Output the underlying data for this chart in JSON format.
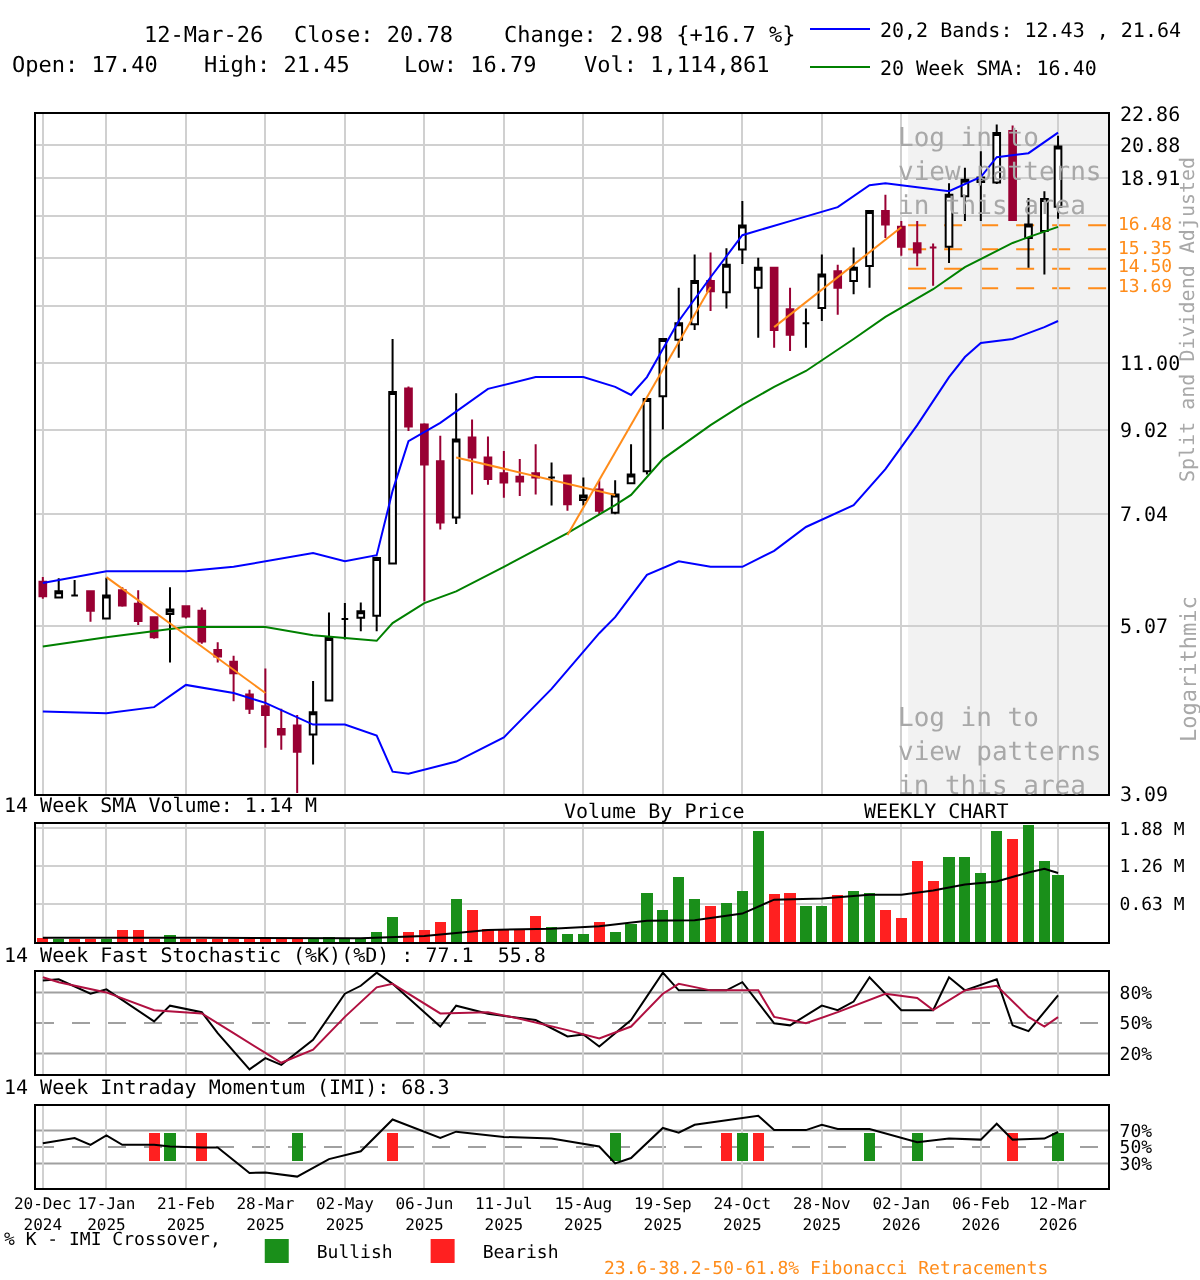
{
  "chart_data": [
    {
      "type": "candlestick",
      "x": [
        "2024-12-20",
        "2024-12-27",
        "2025-01-03",
        "2025-01-10",
        "2025-01-17",
        "2025-01-24",
        "2025-01-31",
        "2025-02-07",
        "2025-02-14",
        "2025-02-21",
        "2025-02-28",
        "2025-03-07",
        "2025-03-14",
        "2025-03-21",
        "2025-03-28",
        "2025-04-04",
        "2025-04-11",
        "2025-04-18",
        "2025-04-25",
        "2025-05-02",
        "2025-05-09",
        "2025-05-16",
        "2025-05-23",
        "2025-05-30",
        "2025-06-06",
        "2025-06-13",
        "2025-06-20",
        "2025-06-27",
        "2025-07-04",
        "2025-07-11",
        "2025-07-18",
        "2025-07-25",
        "2025-08-01",
        "2025-08-08",
        "2025-08-15",
        "2025-08-22",
        "2025-08-29",
        "2025-09-05",
        "2025-09-12",
        "2025-09-19",
        "2025-09-26",
        "2025-10-03",
        "2025-10-10",
        "2025-10-17",
        "2025-10-24",
        "2025-10-31",
        "2025-11-07",
        "2025-11-14",
        "2025-11-21",
        "2025-11-28",
        "2025-12-05",
        "2025-12-12",
        "2025-12-19",
        "2025-12-26",
        "2026-01-02",
        "2026-01-09",
        "2026-01-16",
        "2026-01-23",
        "2026-01-30",
        "2026-02-06",
        "2026-02-13",
        "2026-02-20",
        "2026-02-27",
        "2026-03-06",
        "2026-03-12"
      ],
      "ohlc": [
        [
          5.77,
          5.85,
          5.49,
          5.53
        ],
        [
          5.51,
          5.83,
          5.51,
          5.61
        ],
        [
          5.54,
          5.8,
          5.53,
          5.54
        ],
        [
          5.61,
          5.61,
          5.13,
          5.3
        ],
        [
          5.18,
          5.84,
          5.18,
          5.54
        ],
        [
          5.63,
          5.68,
          5.36,
          5.38
        ],
        [
          5.41,
          5.63,
          5.08,
          5.14
        ],
        [
          5.2,
          5.2,
          4.88,
          4.9
        ],
        [
          5.25,
          5.68,
          4.55,
          5.32
        ],
        [
          5.37,
          5.37,
          5.18,
          5.21
        ],
        [
          5.3,
          5.35,
          4.81,
          4.84
        ],
        [
          4.72,
          4.83,
          4.55,
          4.63
        ],
        [
          4.56,
          4.64,
          4.06,
          4.41
        ],
        [
          4.14,
          4.2,
          3.91,
          3.97
        ],
        [
          4.0,
          4.47,
          3.54,
          3.9
        ],
        [
          3.74,
          3.97,
          3.52,
          3.68
        ],
        [
          3.78,
          3.9,
          3.1,
          3.5
        ],
        [
          3.68,
          4.31,
          3.37,
          3.93
        ],
        [
          4.07,
          5.27,
          4.07,
          4.89
        ],
        [
          5.17,
          5.42,
          4.87,
          5.17
        ],
        [
          5.19,
          5.43,
          4.99,
          5.29
        ],
        [
          5.22,
          6.21,
          4.99,
          6.19
        ],
        [
          6.09,
          11.79,
          6.09,
          10.09
        ],
        [
          10.19,
          10.25,
          8.99,
          9.11
        ],
        [
          9.17,
          9.2,
          5.45,
          8.15
        ],
        [
          8.23,
          8.87,
          6.73,
          6.87
        ],
        [
          6.97,
          10.05,
          6.84,
          8.77
        ],
        [
          8.82,
          9.3,
          7.46,
          8.32
        ],
        [
          8.32,
          8.85,
          7.68,
          7.81
        ],
        [
          7.94,
          8.48,
          7.39,
          7.73
        ],
        [
          7.86,
          8.28,
          7.43,
          7.75
        ],
        [
          7.94,
          8.65,
          7.46,
          7.84
        ],
        [
          7.84,
          8.2,
          7.22,
          7.84
        ],
        [
          7.89,
          7.9,
          7.11,
          7.25
        ],
        [
          7.34,
          7.84,
          7.22,
          7.44
        ],
        [
          7.57,
          7.78,
          7.04,
          7.11
        ],
        [
          7.07,
          7.78,
          7.04,
          7.46
        ],
        [
          7.71,
          8.65,
          7.71,
          7.91
        ],
        [
          7.99,
          9.88,
          7.91,
          9.88
        ],
        [
          9.96,
          11.79,
          9.03,
          11.79
        ],
        [
          11.76,
          13.71,
          11.16,
          12.35
        ],
        [
          12.31,
          15.12,
          12.11,
          13.98
        ],
        [
          13.98,
          15.21,
          12.8,
          13.57
        ],
        [
          13.53,
          15.4,
          12.9,
          14.67
        ],
        [
          15.34,
          17.69,
          14.7,
          16.46
        ],
        [
          13.71,
          14.97,
          11.83,
          14.54
        ],
        [
          14.54,
          14.54,
          11.49,
          12.11
        ],
        [
          12.87,
          13.71,
          11.38,
          11.94
        ],
        [
          12.35,
          12.9,
          11.49,
          12.35
        ],
        [
          12.92,
          15.12,
          12.43,
          14.25
        ],
        [
          14.39,
          14.67,
          12.66,
          13.71
        ],
        [
          13.98,
          15.43,
          13.45,
          14.54
        ],
        [
          14.62,
          17.18,
          13.71,
          17.18
        ],
        [
          17.18,
          18.03,
          15.87,
          16.51
        ],
        [
          16.41,
          16.68,
          15.06,
          15.47
        ],
        [
          15.63,
          16.68,
          14.6,
          15.21
        ],
        [
          15.43,
          15.61,
          13.79,
          15.43
        ],
        [
          15.47,
          18.65,
          14.75,
          18.03
        ],
        [
          17.94,
          19.52,
          16.68,
          18.84
        ],
        [
          18.71,
          20.49,
          16.68,
          18.96
        ],
        [
          18.69,
          22.16,
          18.6,
          21.61
        ],
        [
          21.74,
          22.1,
          16.68,
          16.74
        ],
        [
          15.87,
          17.86,
          14.54,
          16.51
        ],
        [
          16.2,
          18.21,
          14.25,
          17.8
        ],
        [
          17.4,
          21.45,
          16.79,
          20.78
        ]
      ],
      "colors": [
        "#990033",
        "#000000",
        "#000000",
        "#990033",
        "#000000",
        "#990033",
        "#990033",
        "#990033",
        "#000000",
        "#990033",
        "#990033",
        "#990033",
        "#990033",
        "#990033",
        "#990033",
        "#990033",
        "#990033",
        "#000000",
        "#000000",
        "#000000",
        "#000000",
        "#000000",
        "#000000",
        "#990033",
        "#990033",
        "#990033",
        "#000000",
        "#990033",
        "#990033",
        "#990033",
        "#990033",
        "#990033",
        "#000000",
        "#990033",
        "#000000",
        "#990033",
        "#000000",
        "#000000",
        "#000000",
        "#000000",
        "#000000",
        "#000000",
        "#990033",
        "#000000",
        "#000000",
        "#000000",
        "#990033",
        "#990033",
        "#000000",
        "#000000",
        "#990033",
        "#000000",
        "#000000",
        "#990033",
        "#990033",
        "#990033",
        "#990033",
        "#000000",
        "#000000",
        "#000000",
        "#000000",
        "#990033",
        "#000000",
        "#000000",
        "#000000"
      ],
      "xlim": [
        "2024-12-17",
        "2026-04-03"
      ],
      "xticks": [
        "2024-12-20",
        "2025-01-17",
        "2025-02-21",
        "2025-03-28",
        "2025-05-02",
        "2025-06-06",
        "2025-07-11",
        "2025-08-15",
        "2025-09-19",
        "2025-10-24",
        "2025-11-28",
        "2026-01-02",
        "2026-02-06",
        "2026-03-12"
      ],
      "tick_labels": "y",
      "log": true,
      "grid": true,
      "ylim": [
        3.09,
        22.86
      ],
      "yticks": [
        22.86,
        20.88,
        18.91,
        {
          "value": 16.94,
          "label": null
        },
        {
          "value": 14.96,
          "label": null
        },
        {
          "value": 12.98,
          "label": null
        },
        {
          "value": 11,
          "label": "11.00"
        },
        9.02,
        7.04,
        5.07,
        3.09
      ],
      "ylabel": "Split and Dividend Adjusted",
      "legend": "top right",
      "series": [
        {
          "type": "line",
          "name": "20,2 Bands: 12.43 , 21.64",
          "color": "#0000ff",
          "x": [
            "2024-12-20",
            "2025-01-17",
            "2025-02-21",
            "2025-03-14",
            "2025-04-18",
            "2025-05-02",
            "2025-05-16",
            "2025-05-23",
            "2025-05-30",
            "2025-06-13",
            "2025-07-04",
            "2025-07-25",
            "2025-08-15",
            "2025-08-29",
            "2025-09-05",
            "2025-09-12",
            "2025-09-26",
            "2025-10-10",
            "2025-10-24",
            "2025-11-14",
            "2025-12-05",
            "2025-12-19",
            "2025-12-26",
            "2026-01-09",
            "2026-01-23",
            "2026-02-06",
            "2026-02-13",
            "2026-02-27",
            "2026-03-12"
          ],
          "values": [
            5.75,
            5.95,
            5.95,
            6.03,
            6.28,
            6.13,
            6.24,
            7.54,
            8.73,
            9.21,
            10.18,
            10.54,
            10.54,
            10.24,
            10.0,
            10.54,
            12.43,
            14.14,
            16.0,
            16.68,
            17.38,
            18.54,
            18.65,
            18.43,
            18.21,
            18.99,
            20.13,
            20.37,
            21.64
          ]
        },
        {
          "type": "line",
          "color": "#0000ff",
          "x": [
            "2024-12-20",
            "2025-01-17",
            "2025-02-07",
            "2025-02-21",
            "2025-03-14",
            "2025-03-28",
            "2025-04-18",
            "2025-05-02",
            "2025-05-16",
            "2025-05-23",
            "2025-05-30",
            "2025-06-20",
            "2025-07-11",
            "2025-08-01",
            "2025-08-22",
            "2025-08-29",
            "2025-09-12",
            "2025-09-26",
            "2025-10-10",
            "2025-10-24",
            "2025-11-07",
            "2025-11-21",
            "2025-12-12",
            "2025-12-26",
            "2026-01-09",
            "2026-01-23",
            "2026-01-30",
            "2026-02-06",
            "2026-02-20",
            "2026-03-06",
            "2026-03-12"
          ],
          "values": [
            3.94,
            3.92,
            3.99,
            4.26,
            4.16,
            4.04,
            3.79,
            3.79,
            3.67,
            3.3,
            3.28,
            3.4,
            3.65,
            4.21,
            4.96,
            5.2,
            5.89,
            6.13,
            6.03,
            6.03,
            6.32,
            6.78,
            7.23,
            8.04,
            9.15,
            10.54,
            11.18,
            11.65,
            11.79,
            12.21,
            12.43
          ]
        },
        {
          "type": "line",
          "name": "20 Week SMA: 16.40",
          "color": "#008000",
          "x": [
            "2024-12-20",
            "2025-01-17",
            "2025-02-21",
            "2025-03-28",
            "2025-04-18",
            "2025-05-16",
            "2025-05-23",
            "2025-06-06",
            "2025-06-20",
            "2025-07-11",
            "2025-08-08",
            "2025-08-29",
            "2025-09-05",
            "2025-09-19",
            "2025-10-10",
            "2025-10-24",
            "2025-11-07",
            "2025-11-21",
            "2025-12-12",
            "2025-12-26",
            "2026-01-16",
            "2026-01-30",
            "2026-02-20",
            "2026-02-27",
            "2026-03-12"
          ],
          "values": [
            4.77,
            4.9,
            5.05,
            5.05,
            4.93,
            4.85,
            5.11,
            5.42,
            5.61,
            6.03,
            6.66,
            7.23,
            7.45,
            8.28,
            9.15,
            9.71,
            10.24,
            10.73,
            11.79,
            12.58,
            13.65,
            14.57,
            15.64,
            15.91,
            16.4
          ]
        },
        {
          "type": "line",
          "color": "#ff8c1a",
          "x": [
            "2025-01-17",
            "2025-03-28"
          ],
          "values": [
            5.85,
            4.16
          ]
        },
        {
          "type": "line",
          "color": "#ff8c1a",
          "x": [
            "2025-06-20",
            "2025-08-29"
          ],
          "values": [
            8.32,
            7.45
          ]
        },
        {
          "type": "line",
          "color": "#ff8c1a",
          "x": [
            "2025-08-08",
            "2025-10-10"
          ],
          "values": [
            6.62,
            13.74
          ]
        },
        {
          "type": "line",
          "color": "#ff8c1a",
          "x": [
            "2025-11-07",
            "2026-01-02"
          ],
          "values": [
            12.21,
            16.38
          ]
        }
      ],
      "ref_lines": [
        {
          "axis": "y",
          "value": 16.48,
          "label": "16.48",
          "color": "#ff8c1a",
          "line_style": "dashed"
        },
        {
          "axis": "y",
          "value": 15.35,
          "label": "15.35",
          "color": "#ff8c1a",
          "line_style": "dashed"
        },
        {
          "axis": "y",
          "value": 14.5,
          "label": "14.50",
          "color": "#ff8c1a",
          "line_style": "dashed"
        },
        {
          "axis": "y",
          "value": 13.69,
          "label": "13.69",
          "color": "#ff8c1a",
          "line_style": "dashed"
        }
      ],
      "bands": [
        {
          "axis": "x",
          "from": "2026-01-05",
          "to": "2026-04-03",
          "color": "#f2f2f2"
        }
      ],
      "annotations": [
        "12-Mar-26",
        "Close: 20.78",
        "Change: 2.98 {+16.7 %}",
        "Open: 17.40",
        "High: 21.45",
        "Low: 16.79",
        "Vol: 1,114,861",
        "Log in to view patterns in this area",
        "Log in to view patterns in this area",
        "Logarithmic"
      ]
    },
    {
      "type": "bar",
      "title": "14 Week SMA Volume: 1.14 M",
      "x": [
        "2024-12-20",
        "2024-12-27",
        "2025-01-03",
        "2025-01-10",
        "2025-01-17",
        "2025-01-24",
        "2025-01-31",
        "2025-02-07",
        "2025-02-14",
        "2025-02-21",
        "2025-02-28",
        "2025-03-07",
        "2025-03-14",
        "2025-03-21",
        "2025-03-28",
        "2025-04-04",
        "2025-04-11",
        "2025-04-18",
        "2025-04-25",
        "2025-05-02",
        "2025-05-09",
        "2025-05-16",
        "2025-05-23",
        "2025-05-30",
        "2025-06-06",
        "2025-06-13",
        "2025-06-20",
        "2025-06-27",
        "2025-07-04",
        "2025-07-11",
        "2025-07-18",
        "2025-07-25",
        "2025-08-01",
        "2025-08-08",
        "2025-08-15",
        "2025-08-22",
        "2025-08-29",
        "2025-09-05",
        "2025-09-12",
        "2025-09-19",
        "2025-09-26",
        "2025-10-03",
        "2025-10-10",
        "2025-10-17",
        "2025-10-24",
        "2025-10-31",
        "2025-11-07",
        "2025-11-14",
        "2025-11-21",
        "2025-11-28",
        "2025-12-05",
        "2025-12-12",
        "2025-12-19",
        "2025-12-26",
        "2026-01-02",
        "2026-01-09",
        "2026-01-16",
        "2026-01-23",
        "2026-01-30",
        "2026-02-06",
        "2026-02-13",
        "2026-02-20",
        "2026-02-27",
        "2026-03-06",
        "2026-03-12"
      ],
      "xlim": [
        "2024-12-17",
        "2026-04-03"
      ],
      "xticks": [
        "2024-12-20",
        "2025-01-17",
        "2025-02-21",
        "2025-03-28",
        "2025-05-02",
        "2025-06-06",
        "2025-07-11",
        "2025-08-15",
        "2025-09-19",
        "2025-10-24",
        "2025-11-28",
        "2026-01-02",
        "2026-02-06",
        "2026-03-12"
      ],
      "tick_labels": "y",
      "grid": true,
      "ylim": [
        0,
        1.95
      ],
      "yticks": [
        {
          "value": 0.63,
          "label": "0.63 M"
        },
        {
          "value": 1.26,
          "label": "1.26 M"
        },
        {
          "value": 1.88,
          "label": "1.88 M"
        }
      ],
      "series": [
        {
          "type": "bar",
          "values": [
            0.07,
            0.05,
            0.05,
            0.05,
            0.05,
            0.2,
            0.2,
            0.05,
            0.12,
            0.05,
            0.05,
            0.05,
            0.05,
            0.05,
            0.09,
            0.05,
            0.05,
            0.05,
            0.08,
            0.05,
            0.05,
            0.16,
            0.42,
            0.16,
            0.2,
            0.33,
            0.71,
            0.53,
            0.21,
            0.21,
            0.21,
            0.43,
            0.24,
            0.13,
            0.14,
            0.33,
            0.16,
            0.29,
            0.81,
            0.53,
            1.08,
            0.71,
            0.59,
            0.64,
            0.84,
            1.83,
            0.79,
            0.81,
            0.59,
            0.59,
            0.78,
            0.84,
            0.81,
            0.53,
            0.4,
            1.34,
            1.01,
            1.4,
            1.4,
            1.14,
            1.83,
            1.7,
            1.93,
            1.34,
            1.11
          ],
          "colors": [
            "#ff2020",
            "#1a8f1a",
            "#ff2020",
            "#ff2020",
            "#1a8f1a",
            "#ff2020",
            "#ff2020",
            "#ff2020",
            "#1a8f1a",
            "#ff2020",
            "#ff2020",
            "#ff2020",
            "#ff2020",
            "#ff2020",
            "#ff2020",
            "#ff2020",
            "#ff2020",
            "#1a8f1a",
            "#1a8f1a",
            "#1a8f1a",
            "#1a8f1a",
            "#1a8f1a",
            "#1a8f1a",
            "#ff2020",
            "#ff2020",
            "#ff2020",
            "#1a8f1a",
            "#ff2020",
            "#ff2020",
            "#ff2020",
            "#ff2020",
            "#ff2020",
            "#1a8f1a",
            "#1a8f1a",
            "#1a8f1a",
            "#ff2020",
            "#1a8f1a",
            "#1a8f1a",
            "#1a8f1a",
            "#1a8f1a",
            "#1a8f1a",
            "#1a8f1a",
            "#ff2020",
            "#1a8f1a",
            "#1a8f1a",
            "#1a8f1a",
            "#ff2020",
            "#ff2020",
            "#1a8f1a",
            "#1a8f1a",
            "#ff2020",
            "#1a8f1a",
            "#1a8f1a",
            "#ff2020",
            "#ff2020",
            "#ff2020",
            "#ff2020",
            "#1a8f1a",
            "#1a8f1a",
            "#1a8f1a",
            "#1a8f1a",
            "#ff2020",
            "#1a8f1a",
            "#1a8f1a",
            "#1a8f1a"
          ]
        },
        {
          "type": "line",
          "color": "#000000",
          "x": [
            "2024-12-20",
            "2025-02-28",
            "2025-05-09",
            "2025-06-06",
            "2025-07-04",
            "2025-08-01",
            "2025-08-22",
            "2025-09-12",
            "2025-10-03",
            "2025-10-24",
            "2025-11-07",
            "2025-11-28",
            "2025-12-19",
            "2026-01-02",
            "2026-01-16",
            "2026-01-30",
            "2026-02-13",
            "2026-02-27",
            "2026-03-06",
            "2026-03-12"
          ],
          "values": [
            0.07,
            0.07,
            0.06,
            0.1,
            0.2,
            0.22,
            0.26,
            0.35,
            0.36,
            0.47,
            0.7,
            0.72,
            0.78,
            0.78,
            0.85,
            0.95,
            1.0,
            1.15,
            1.21,
            1.14
          ]
        }
      ],
      "annotations": [
        "Volume By Price",
        "WEEKLY CHART"
      ]
    },
    {
      "type": "line",
      "title": "14 Week Fast Stochastic (%K)(%D) : 77.1  55.8",
      "xlim": [
        "2024-12-17",
        "2026-04-03"
      ],
      "xticks": [
        "2024-12-20",
        "2025-01-17",
        "2025-02-21",
        "2025-03-28",
        "2025-05-02",
        "2025-06-06",
        "2025-07-11",
        "2025-08-15",
        "2025-09-19",
        "2025-10-24",
        "2025-11-28",
        "2026-01-02",
        "2026-02-06",
        "2026-03-12"
      ],
      "tick_labels": "y",
      "grid": "x",
      "ylim": [
        0,
        100
      ],
      "yticks": [
        {
          "value": 20,
          "label": "20%"
        },
        {
          "value": 50,
          "label": "50%"
        },
        {
          "value": 80,
          "label": "80%"
        }
      ],
      "series": [
        {
          "color": "#000000",
          "x": [
            "2024-12-20",
            "2024-12-27",
            "2025-01-10",
            "2025-01-17",
            "2025-02-07",
            "2025-02-14",
            "2025-02-28",
            "2025-03-07",
            "2025-03-21",
            "2025-03-28",
            "2025-04-04",
            "2025-04-18",
            "2025-05-02",
            "2025-05-09",
            "2025-05-16",
            "2025-05-23",
            "2025-06-13",
            "2025-06-20",
            "2025-07-04",
            "2025-07-25",
            "2025-08-08",
            "2025-08-15",
            "2025-08-22",
            "2025-08-29",
            "2025-09-05",
            "2025-09-19",
            "2025-09-26",
            "2025-10-17",
            "2025-10-24",
            "2025-11-07",
            "2025-11-14",
            "2025-11-28",
            "2025-12-05",
            "2025-12-12",
            "2025-12-19",
            "2026-01-02",
            "2026-01-16",
            "2026-01-23",
            "2026-01-30",
            "2026-02-13",
            "2026-02-20",
            "2026-02-27",
            "2026-03-12"
          ],
          "values": [
            91.6,
            92.9,
            78.7,
            83,
            51.6,
            67,
            60.6,
            40,
            4.5,
            15.5,
            9,
            33.6,
            78.7,
            86.5,
            99.4,
            88.4,
            46.5,
            67,
            59,
            52.9,
            36.8,
            38.7,
            27,
            40,
            52.9,
            99.4,
            82,
            82,
            90,
            49.7,
            47.7,
            67,
            62.6,
            71,
            94.8,
            62.6,
            62.6,
            94.8,
            82,
            92.9,
            47.7,
            42,
            77.1
          ]
        },
        {
          "color": "#b01040",
          "x": [
            "2024-12-20",
            "2024-12-27",
            "2025-01-17",
            "2025-02-07",
            "2025-02-28",
            "2025-03-14",
            "2025-03-28",
            "2025-04-04",
            "2025-04-18",
            "2025-05-02",
            "2025-05-16",
            "2025-05-23",
            "2025-06-13",
            "2025-07-04",
            "2025-07-18",
            "2025-08-08",
            "2025-08-22",
            "2025-09-05",
            "2025-09-19",
            "2025-09-26",
            "2025-10-10",
            "2025-10-31",
            "2025-11-07",
            "2025-11-21",
            "2025-12-05",
            "2025-12-26",
            "2026-01-09",
            "2026-01-16",
            "2026-01-30",
            "2026-02-13",
            "2026-02-27",
            "2026-03-06",
            "2026-03-12"
          ],
          "values": [
            94.8,
            90,
            80,
            62.6,
            59.4,
            40,
            20.7,
            11,
            23.9,
            56,
            85,
            88.4,
            59.4,
            60.6,
            54.2,
            43,
            34.8,
            46.5,
            78.7,
            88.4,
            82,
            82,
            56,
            49.7,
            60.6,
            78.7,
            74.5,
            62.6,
            82,
            86.5,
            56,
            46.5,
            55.8
          ]
        }
      ],
      "ref_lines": [
        {
          "axis": "y",
          "value": 80,
          "color": "#a0a0a0",
          "line_style": "solid"
        },
        {
          "axis": "y",
          "value": 50,
          "color": "#a0a0a0",
          "line_style": "dashed"
        },
        {
          "axis": "y",
          "value": 20,
          "color": "#a0a0a0",
          "line_style": "solid"
        }
      ]
    },
    {
      "type": "line",
      "title": "14 Week Intraday Momentum (IMI): 68.3",
      "xlim": [
        "2024-12-17",
        "2026-04-03"
      ],
      "xticks": [
        {
          "value": "2024-12-20",
          "label": "20-Dec\n2024"
        },
        {
          "value": "2025-01-17",
          "label": "17-Jan\n2025"
        },
        {
          "value": "2025-02-21",
          "label": "21-Feb\n2025"
        },
        {
          "value": "2025-03-28",
          "label": "28-Mar\n2025"
        },
        {
          "value": "2025-05-02",
          "label": "02-May\n2025"
        },
        {
          "value": "2025-06-06",
          "label": "06-Jun\n2025"
        },
        {
          "value": "2025-07-11",
          "label": "11-Jul\n2025"
        },
        {
          "value": "2025-08-15",
          "label": "15-Aug\n2025"
        },
        {
          "value": "2025-09-19",
          "label": "19-Sep\n2025"
        },
        {
          "value": "2025-10-24",
          "label": "24-Oct\n2025"
        },
        {
          "value": "2025-11-28",
          "label": "28-Nov\n2025"
        },
        {
          "value": "2026-01-02",
          "label": "02-Jan\n2026"
        },
        {
          "value": "2026-02-06",
          "label": "06-Feb\n2026"
        },
        {
          "value": "2026-03-12",
          "label": "12-Mar\n2026"
        }
      ],
      "grid": "x",
      "ylim": [
        0,
        100
      ],
      "yticks": [
        {
          "value": 30,
          "label": "30%"
        },
        {
          "value": 50,
          "label": "50%"
        },
        {
          "value": 70,
          "label": "70%"
        }
      ],
      "legend": "bottom",
      "legend_title": "% K - IMI Crossover,",
      "series": [
        {
          "type": "line",
          "color": "#000000",
          "x": [
            "2024-12-20",
            "2025-01-03",
            "2025-01-10",
            "2025-01-17",
            "2025-01-24",
            "2025-02-07",
            "2025-02-14",
            "2025-02-28",
            "2025-03-07",
            "2025-03-21",
            "2025-03-28",
            "2025-04-11",
            "2025-04-25",
            "2025-05-09",
            "2025-05-23",
            "2025-06-13",
            "2025-06-20",
            "2025-07-11",
            "2025-08-01",
            "2025-08-22",
            "2025-08-29",
            "2025-09-05",
            "2025-09-19",
            "2025-09-26",
            "2025-10-03",
            "2025-10-31",
            "2025-11-07",
            "2025-11-21",
            "2025-11-28",
            "2025-12-05",
            "2025-12-19",
            "2026-01-09",
            "2026-01-23",
            "2026-02-06",
            "2026-02-13",
            "2026-02-20",
            "2026-03-06",
            "2026-03-12"
          ],
          "values": [
            54.5,
            61,
            52.6,
            64.2,
            52.6,
            52.6,
            50.6,
            49.4,
            49.4,
            18.4,
            19,
            13.9,
            35.2,
            44.8,
            83.5,
            61,
            68.7,
            62.3,
            60.3,
            50.6,
            30,
            36.5,
            73.2,
            67.4,
            77.1,
            88.1,
            70.6,
            70.6,
            77.1,
            71.9,
            71.9,
            55.8,
            60.3,
            59,
            78.4,
            59,
            60.3,
            68.3
          ]
        },
        {
          "type": "bar",
          "name": "Bullish",
          "color": "#1a8f1a",
          "x": [
            "2025-02-14",
            "2025-04-11",
            "2025-08-29",
            "2025-10-24",
            "2025-12-19",
            "2026-01-09",
            "2026-03-12"
          ],
          "base": [
            33,
            33,
            33,
            33,
            33,
            33,
            33
          ],
          "values": [
            34,
            34,
            34,
            34,
            34,
            34,
            34
          ]
        },
        {
          "type": "bar",
          "name": "Bearish",
          "color": "#ff2020",
          "x": [
            "2025-02-07",
            "2025-02-28",
            "2025-05-23",
            "2025-10-17",
            "2025-10-31",
            "2026-02-20"
          ],
          "base": [
            33,
            33,
            33,
            33,
            33,
            33
          ],
          "values": [
            34,
            34,
            34,
            34,
            34,
            34
          ]
        }
      ],
      "ref_lines": [
        {
          "axis": "y",
          "value": 70,
          "color": "#a0a0a0",
          "line_style": "solid"
        },
        {
          "axis": "y",
          "value": 50,
          "color": "#a0a0a0",
          "line_style": "dashed"
        },
        {
          "axis": "y",
          "value": 30,
          "color": "#a0a0a0",
          "line_style": "solid"
        }
      ],
      "annotations": [
        "23.6-38.2-50-61.8% Fibonacci Retracements"
      ]
    }
  ]
}
